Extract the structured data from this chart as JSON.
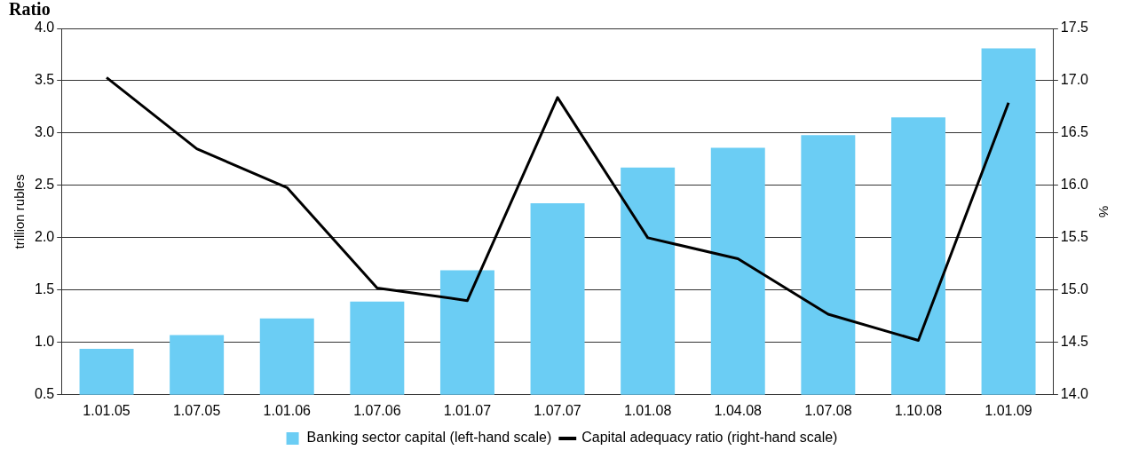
{
  "chart_data": {
    "type": "bar",
    "title": "Ratio",
    "categories": [
      "1.01.05",
      "1.07.05",
      "1.01.06",
      "1.07.06",
      "1.01.07",
      "1.07.07",
      "1.01.08",
      "1.04.08",
      "1.07.08",
      "1.10.08",
      "1.01.09"
    ],
    "series": [
      {
        "name": "Banking sector capital (left-hand scale)",
        "color": "#6bcdf4",
        "values": [
          0.94,
          1.07,
          1.23,
          1.39,
          1.69,
          2.33,
          2.67,
          2.86,
          2.98,
          3.15,
          3.81
        ]
      },
      {
        "name": "Capital adequacy ratio (right-hand scale)",
        "type": "line",
        "axis": "y2",
        "color": "#000000",
        "values": [
          17.03,
          16.35,
          15.98,
          15.02,
          14.9,
          16.84,
          15.5,
          15.3,
          14.77,
          14.52,
          16.79
        ]
      }
    ],
    "ylabel": "trillion rubles",
    "y2label": "%",
    "ylim": [
      0.5,
      4
    ],
    "yticks": [
      {
        "value": 0.5,
        "label": "0.5"
      },
      {
        "value": 1,
        "label": "1.0"
      },
      {
        "value": 1.5,
        "label": "1.5"
      },
      {
        "value": 2,
        "label": "2.0"
      },
      {
        "value": 2.5,
        "label": "2.5"
      },
      {
        "value": 3,
        "label": "3.0"
      },
      {
        "value": 3.5,
        "label": "3.5"
      },
      {
        "value": 4,
        "label": "4.0"
      }
    ],
    "y2lim": [
      14,
      17.5
    ],
    "y2ticks": [
      {
        "value": 14,
        "label": "14.0"
      },
      {
        "value": 14.5,
        "label": "14.5"
      },
      {
        "value": 15,
        "label": "15.0"
      },
      {
        "value": 15.5,
        "label": "15.5"
      },
      {
        "value": 16,
        "label": "16.0"
      },
      {
        "value": 16.5,
        "label": "16.5"
      },
      {
        "value": 17,
        "label": "17.0"
      },
      {
        "value": 17.5,
        "label": "17.5"
      }
    ],
    "grid": "y",
    "legend": "bottom",
    "marker": "none",
    "line_style": "solid"
  }
}
